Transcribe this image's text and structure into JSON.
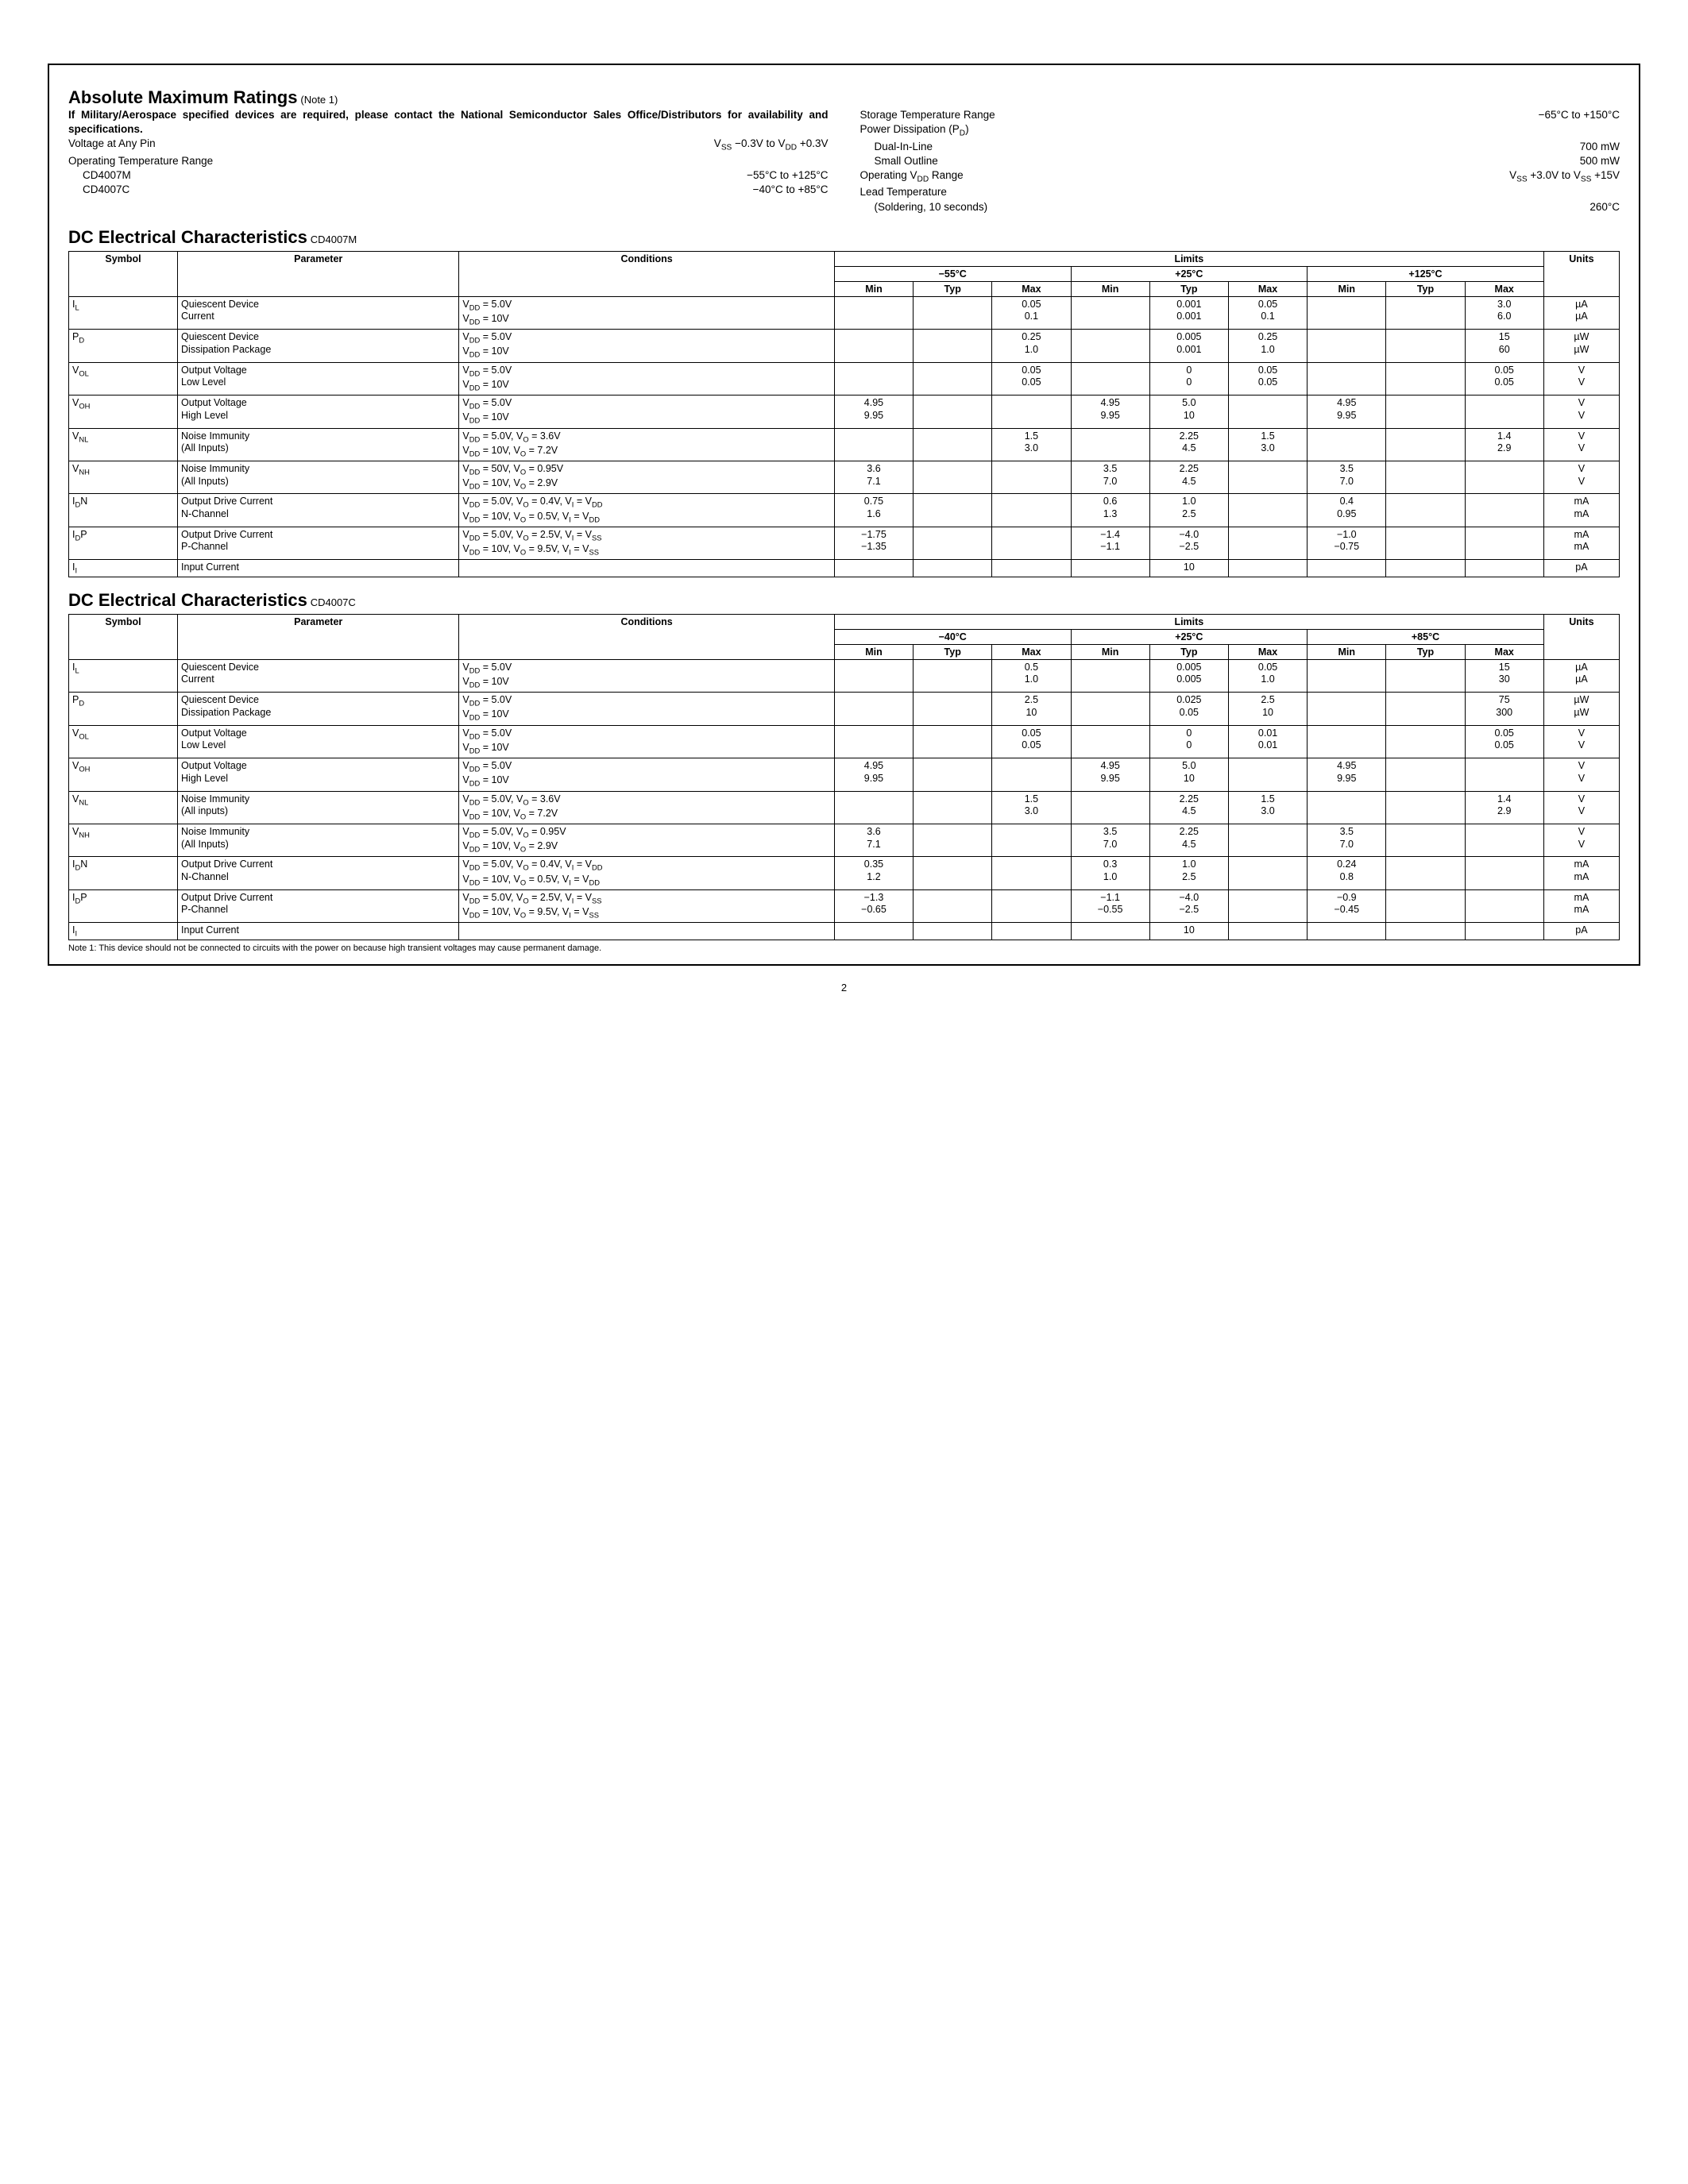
{
  "amr": {
    "title": "Absolute Maximum Ratings",
    "note_label": "(Note 1)",
    "intro": "If Military/Aerospace specified devices are required, please contact the National Semiconductor Sales Office/Distributors for availability and specifications.",
    "left": [
      {
        "label": "Voltage at Any Pin",
        "value": "V_SS −0.3V to V_DD +0.3V"
      },
      {
        "label": "Operating Temperature Range",
        "value": ""
      },
      {
        "label": "CD4007M",
        "value": "−55°C to +125°C",
        "indent": true
      },
      {
        "label": "CD4007C",
        "value": "−40°C to +85°C",
        "indent": true
      }
    ],
    "right": [
      {
        "label": "Storage Temperature Range",
        "value": "−65°C to +150°C"
      },
      {
        "label": "Power Dissipation (P_D)",
        "value": ""
      },
      {
        "label": "Dual-In-Line",
        "value": "700 mW",
        "indent": true
      },
      {
        "label": "Small Outline",
        "value": "500 mW",
        "indent": true
      },
      {
        "label": "Operating V_DD Range",
        "value": "V_SS +3.0V to V_SS +15V"
      },
      {
        "label": "Lead Temperature",
        "value": ""
      },
      {
        "label": "(Soldering, 10 seconds)",
        "value": "260°C",
        "indent": true
      }
    ]
  },
  "tableHeaders": {
    "symbol": "Symbol",
    "parameter": "Parameter",
    "conditions": "Conditions",
    "limits": "Limits",
    "units": "Units",
    "min": "Min",
    "typ": "Typ",
    "max": "Max"
  },
  "tableM": {
    "title": "DC Electrical Characteristics",
    "device": "CD4007M",
    "temps": [
      "−55°C",
      "+25°C",
      "+125°C"
    ],
    "rows": [
      {
        "sym": "I_L",
        "param": "Quiescent Device\nCurrent",
        "cond": "V_DD = 5.0V\nV_DD = 10V",
        "v": [
          "",
          "",
          "0.05\n0.1",
          "",
          "0.001\n0.001",
          "0.05\n0.1",
          "",
          "",
          "3.0\n6.0"
        ],
        "unit": "µA\nµA"
      },
      {
        "sym": "P_D",
        "param": "Quiescent Device\nDissipation Package",
        "cond": "V_DD = 5.0V\nV_DD = 10V",
        "v": [
          "",
          "",
          "0.25\n1.0",
          "",
          "0.005\n0.001",
          "0.25\n1.0",
          "",
          "",
          "15\n60"
        ],
        "unit": "µW\nµW"
      },
      {
        "sym": "V_OL",
        "param": "Output Voltage\nLow Level",
        "cond": "V_DD = 5.0V\nV_DD = 10V",
        "v": [
          "",
          "",
          "0.05\n0.05",
          "",
          "0\n0",
          "0.05\n0.05",
          "",
          "",
          "0.05\n0.05"
        ],
        "unit": "V\nV"
      },
      {
        "sym": "V_OH",
        "param": "Output Voltage\nHigh Level",
        "cond": "V_DD = 5.0V\nV_DD = 10V",
        "v": [
          "4.95\n9.95",
          "",
          "",
          "4.95\n9.95",
          "5.0\n10",
          "",
          "4.95\n9.95",
          "",
          ""
        ],
        "unit": "V\nV"
      },
      {
        "sym": "V_NL",
        "param": "Noise Immunity\n(All Inputs)",
        "cond": "V_DD = 5.0V, V_O = 3.6V\nV_DD = 10V, V_O = 7.2V",
        "v": [
          "",
          "",
          "1.5\n3.0",
          "",
          "2.25\n4.5",
          "1.5\n3.0",
          "",
          "",
          "1.4\n2.9"
        ],
        "unit": "V\nV"
      },
      {
        "sym": "V_NH",
        "param": "Noise Immunity\n(All Inputs)",
        "cond": "V_DD = 50V, V_O = 0.95V\nV_DD = 10V, V_O = 2.9V",
        "v": [
          "3.6\n7.1",
          "",
          "",
          "3.5\n7.0",
          "2.25\n4.5",
          "",
          "3.5\n7.0",
          "",
          ""
        ],
        "unit": "V\nV"
      },
      {
        "sym": "I_DN",
        "param": "Output Drive Current\nN-Channel",
        "cond": "V_DD = 5.0V, V_O = 0.4V, V_I = V_DD\nV_DD = 10V, V_O = 0.5V, V_I = V_DD",
        "v": [
          "0.75\n1.6",
          "",
          "",
          "0.6\n1.3",
          "1.0\n2.5",
          "",
          "0.4\n0.95",
          "",
          ""
        ],
        "unit": "mA\nmA"
      },
      {
        "sym": "I_DP",
        "param": "Output Drive Current\nP-Channel",
        "cond": "V_DD = 5.0V, V_O = 2.5V, V_I = V_SS\nV_DD = 10V, V_O = 9.5V, V_I = V_SS",
        "v": [
          "−1.75\n−1.35",
          "",
          "",
          "−1.4\n−1.1",
          "−4.0\n−2.5",
          "",
          "−1.0\n−0.75",
          "",
          ""
        ],
        "unit": "mA\nmA"
      },
      {
        "sym": "I_I",
        "param": "Input Current",
        "cond": "",
        "v": [
          "",
          "",
          "",
          "",
          "10",
          "",
          "",
          "",
          ""
        ],
        "unit": "pA"
      }
    ]
  },
  "tableC": {
    "title": "DC Electrical Characteristics",
    "device": "CD4007C",
    "temps": [
      "−40°C",
      "+25°C",
      "+85°C"
    ],
    "rows": [
      {
        "sym": "I_L",
        "param": "Quiescent Device\nCurrent",
        "cond": "V_DD = 5.0V\nV_DD = 10V",
        "v": [
          "",
          "",
          "0.5\n1.0",
          "",
          "0.005\n0.005",
          "0.05\n1.0",
          "",
          "",
          "15\n30"
        ],
        "unit": "µA\nµA"
      },
      {
        "sym": "P_D",
        "param": "Quiescent Device\nDissipation Package",
        "cond": "V_DD = 5.0V\nV_DD = 10V",
        "v": [
          "",
          "",
          "2.5\n10",
          "",
          "0.025\n0.05",
          "2.5\n10",
          "",
          "",
          "75\n300"
        ],
        "unit": "µW\nµW"
      },
      {
        "sym": "V_OL",
        "param": "Output Voltage\nLow Level",
        "cond": "V_DD = 5.0V\nV_DD = 10V",
        "v": [
          "",
          "",
          "0.05\n0.05",
          "",
          "0\n0",
          "0.01\n0.01",
          "",
          "",
          "0.05\n0.05"
        ],
        "unit": "V\nV"
      },
      {
        "sym": "V_OH",
        "param": "Output Voltage\nHigh Level",
        "cond": "V_DD = 5.0V\nV_DD = 10V",
        "v": [
          "4.95\n9.95",
          "",
          "",
          "4.95\n9.95",
          "5.0\n10",
          "",
          "4.95\n9.95",
          "",
          ""
        ],
        "unit": "V\nV"
      },
      {
        "sym": "V_NL",
        "param": "Noise Immunity\n(All inputs)",
        "cond": "V_DD = 5.0V, V_O = 3.6V\nV_DD = 10V, V_O = 7.2V",
        "v": [
          "",
          "",
          "1.5\n3.0",
          "",
          "2.25\n4.5",
          "1.5\n3.0",
          "",
          "",
          "1.4\n2.9"
        ],
        "unit": "V\nV"
      },
      {
        "sym": "V_NH",
        "param": "Noise Immunity\n(All Inputs)",
        "cond": "V_DD = 5.0V, V_O = 0.95V\nV_DD = 10V, V_O = 2.9V",
        "v": [
          "3.6\n7.1",
          "",
          "",
          "3.5\n7.0",
          "2.25\n4.5",
          "",
          "3.5\n7.0",
          "",
          ""
        ],
        "unit": "V\nV"
      },
      {
        "sym": "I_DN",
        "param": "Output Drive Current\nN-Channel",
        "cond": "V_DD = 5.0V, V_O = 0.4V, V_I = V_DD\nV_DD = 10V, V_O = 0.5V, V_I = V_DD",
        "v": [
          "0.35\n1.2",
          "",
          "",
          "0.3\n1.0",
          "1.0\n2.5",
          "",
          "0.24\n0.8",
          "",
          ""
        ],
        "unit": "mA\nmA"
      },
      {
        "sym": "I_DP",
        "param": "Output Drive Current\nP-Channel",
        "cond": "V_DD = 5.0V, V_O = 2.5V, V_I = V_SS\nV_DD = 10V, V_O = 9.5V, V_I = V_SS",
        "v": [
          "−1.3\n−0.65",
          "",
          "",
          "−1.1\n−0.55",
          "−4.0\n−2.5",
          "",
          "−0.9\n−0.45",
          "",
          ""
        ],
        "unit": "mA\nmA"
      },
      {
        "sym": "I_I",
        "param": "Input Current",
        "cond": "",
        "v": [
          "",
          "",
          "",
          "",
          "10",
          "",
          "",
          "",
          ""
        ],
        "unit": "pA"
      }
    ]
  },
  "note1": "Note 1: This device should not be connected to circuits with the power on because high transient voltages may cause permanent damage.",
  "pageNumber": "2"
}
